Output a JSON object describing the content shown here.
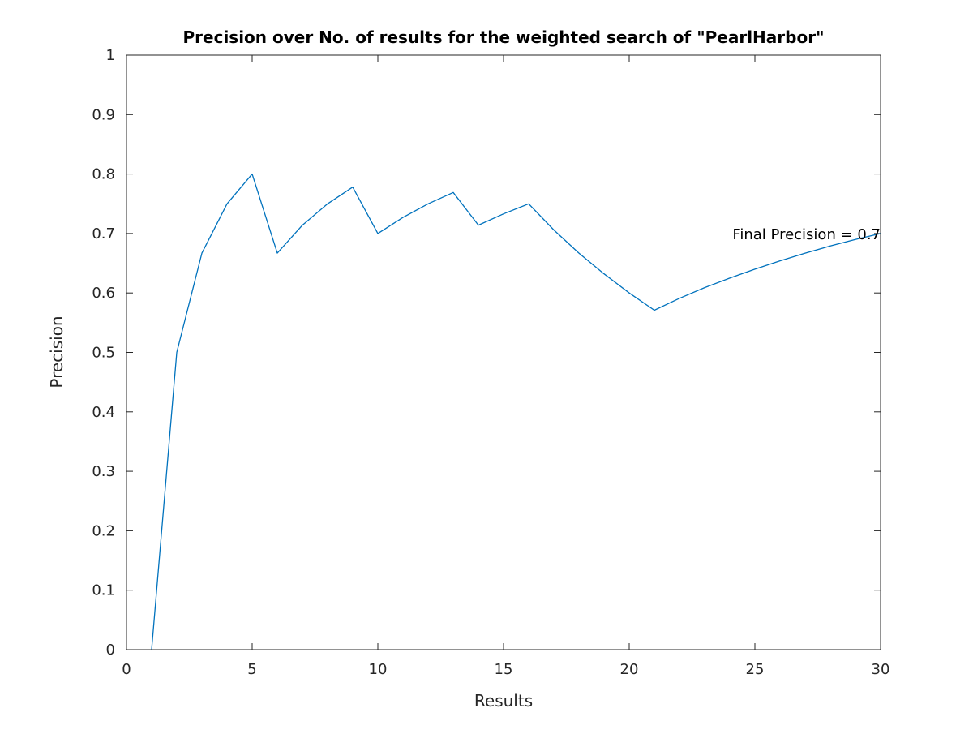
{
  "chart_data": {
    "type": "line",
    "title": "Precision over No. of results for the weighted search of \"PearlHarbor\"",
    "xlabel": "Results",
    "ylabel": "Precision",
    "xlim": [
      0,
      30
    ],
    "ylim": [
      0,
      1
    ],
    "xticks": [
      0,
      5,
      10,
      15,
      20,
      25,
      30
    ],
    "xtick_labels": [
      "0",
      "5",
      "10",
      "15",
      "20",
      "25",
      "30"
    ],
    "yticks": [
      0,
      0.1,
      0.2,
      0.3,
      0.4,
      0.5,
      0.6,
      0.7,
      0.8,
      0.9,
      1
    ],
    "ytick_labels": [
      "0",
      "0.1",
      "0.2",
      "0.3",
      "0.4",
      "0.5",
      "0.6",
      "0.7",
      "0.8",
      "0.9",
      "1"
    ],
    "grid": false,
    "line_color": "#0072bd",
    "series": [
      {
        "x": [
          1,
          2,
          3,
          4,
          5,
          6,
          7,
          8,
          9,
          10,
          11,
          12,
          13,
          14,
          15,
          16,
          17,
          18,
          19,
          20,
          21,
          22,
          23,
          24,
          25,
          26,
          27,
          28,
          29,
          30
        ],
        "values": [
          0,
          0.5,
          0.667,
          0.75,
          0.8,
          0.667,
          0.714,
          0.75,
          0.778,
          0.7,
          0.727,
          0.75,
          0.769,
          0.714,
          0.733,
          0.75,
          0.706,
          0.667,
          0.632,
          0.6,
          0.571,
          0.591,
          0.609,
          0.625,
          0.64,
          0.654,
          0.667,
          0.679,
          0.69,
          0.7
        ]
      }
    ],
    "annotations": [
      {
        "text": "Final Precision = 0.7",
        "x": 30,
        "y": 0.7,
        "anchor": "end"
      }
    ]
  }
}
